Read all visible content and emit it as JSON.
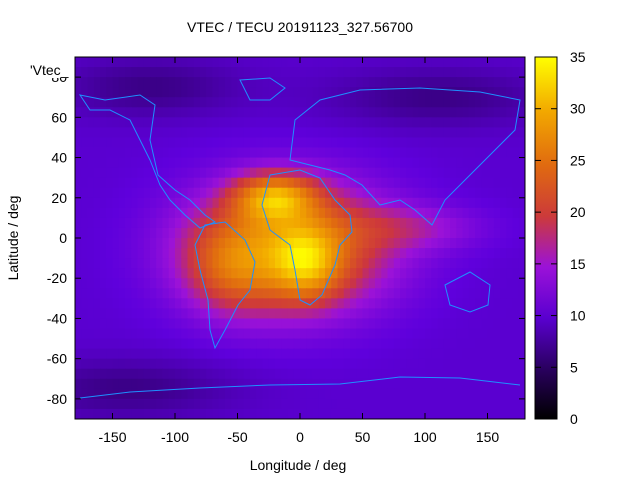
{
  "chart_data": {
    "type": "heatmap",
    "title": "VTEC / TECU 20191123_327.56700",
    "xlabel": "Longitude / deg",
    "ylabel": "Latitude / deg",
    "series_label": "'Vtec_",
    "xlim": [
      -180,
      180
    ],
    "ylim": [
      -90,
      90
    ],
    "x_ticks": [
      -150,
      -100,
      -50,
      0,
      50,
      100,
      150
    ],
    "y_ticks": [
      -80,
      -60,
      -40,
      -20,
      0,
      20,
      40,
      60,
      80
    ],
    "colorbar": {
      "range": [
        0,
        35
      ],
      "ticks": [
        0,
        5,
        10,
        15,
        20,
        25,
        30,
        35
      ]
    },
    "field_model": {
      "background_tecu": 9.5,
      "blobs": [
        {
          "lon": -10,
          "lat": -5,
          "sigma_lon": 55,
          "sigma_lat": 22,
          "tecu": 16
        },
        {
          "lon": -20,
          "lat": 20,
          "sigma_lon": 22,
          "sigma_lat": 8,
          "tecu": 14
        },
        {
          "lon": 5,
          "lat": -12,
          "sigma_lon": 18,
          "sigma_lat": 12,
          "tecu": 10
        },
        {
          "lon": -55,
          "lat": -15,
          "sigma_lon": 25,
          "sigma_lat": 15,
          "tecu": 6
        },
        {
          "lon": 90,
          "lat": 5,
          "sigma_lon": 40,
          "sigma_lat": 8,
          "tecu": 4
        },
        {
          "lon": 110,
          "lat": 70,
          "sigma_lon": 60,
          "sigma_lat": 10,
          "tecu": -3
        },
        {
          "lon": -120,
          "lat": 75,
          "sigma_lon": 50,
          "sigma_lat": 10,
          "tecu": -3
        },
        {
          "lon": -140,
          "lat": -75,
          "sigma_lon": 60,
          "sigma_lat": 10,
          "tecu": -3
        }
      ]
    }
  },
  "colors": {
    "coastline": "#1e90ff",
    "axis": "#000000"
  }
}
